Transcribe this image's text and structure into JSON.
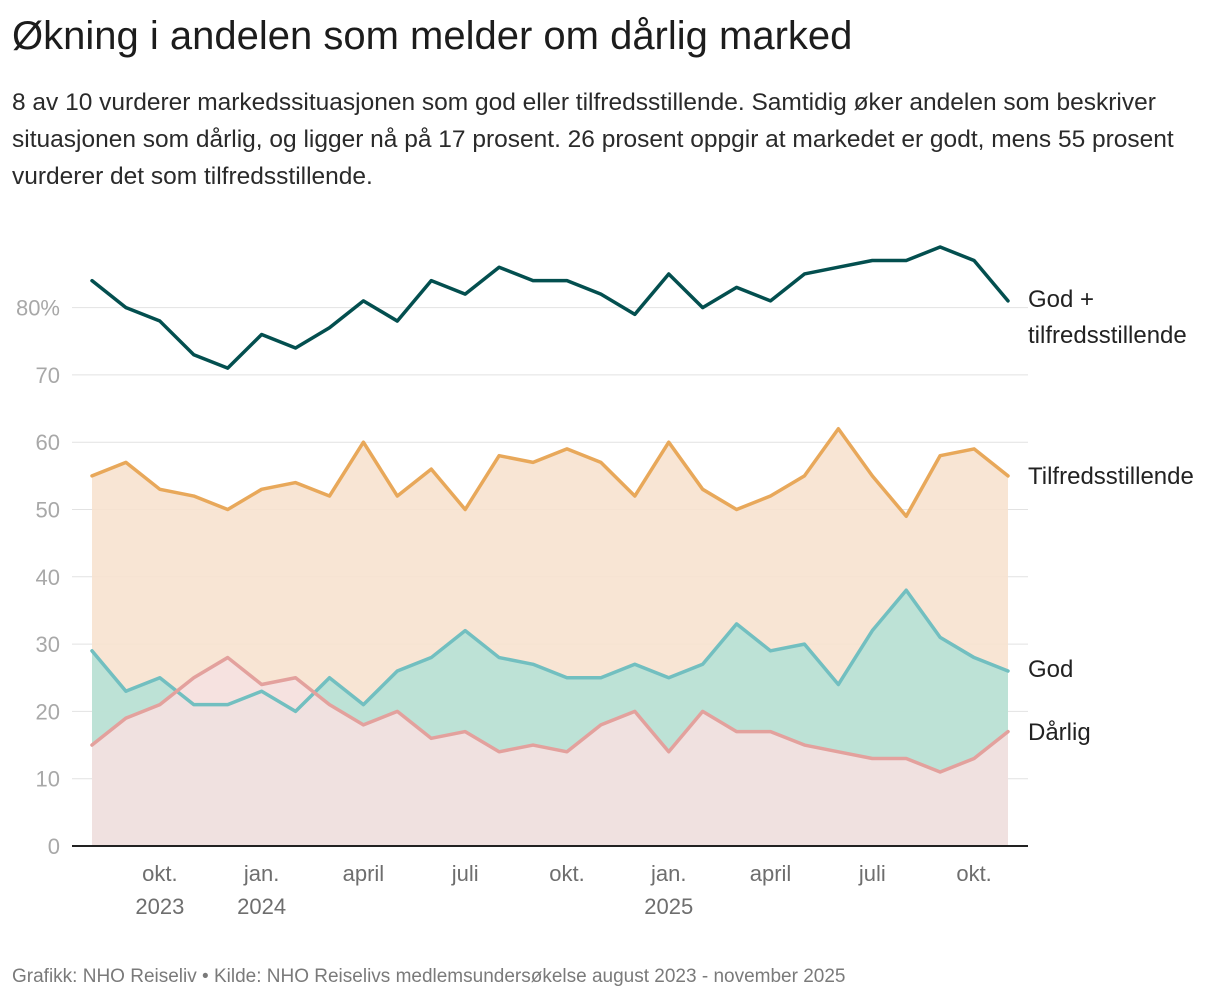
{
  "title": "Økning i andelen som melder om dårlig marked",
  "subtitle": "8 av 10 vurderer markedssituasjonen som god eller tilfredsstillende. Samtidig øker andelen som beskriver situasjonen som dårlig, og ligger nå på 17 prosent. 26 prosent oppgir at markedet er godt, mens 55 prosent vurderer det som tilfredsstillende.",
  "footer": "Grafikk: NHO Reiseliv • Kilde: NHO Reiselivs medlemsundersøkelse august 2023 - november 2025",
  "chart_data": {
    "type": "line",
    "x": [
      "2023-08",
      "2023-09",
      "2023-10",
      "2023-11",
      "2023-12",
      "2024-01",
      "2024-02",
      "2024-03",
      "2024-04",
      "2024-05",
      "2024-06",
      "2024-07",
      "2024-08",
      "2024-09",
      "2024-10",
      "2024-11",
      "2024-12",
      "2025-01",
      "2025-02",
      "2025-03",
      "2025-04",
      "2025-05",
      "2025-06",
      "2025-07",
      "2025-08",
      "2025-09",
      "2025-10",
      "2025-11"
    ],
    "ylim": [
      0,
      90
    ],
    "y_ticks": [
      {
        "value": 0,
        "label": "0"
      },
      {
        "value": 10,
        "label": "10"
      },
      {
        "value": 20,
        "label": "20"
      },
      {
        "value": 30,
        "label": "30"
      },
      {
        "value": 40,
        "label": "40"
      },
      {
        "value": 50,
        "label": "50"
      },
      {
        "value": 60,
        "label": "60"
      },
      {
        "value": 70,
        "label": "70"
      },
      {
        "value": 80,
        "label": "80%"
      }
    ],
    "x_ticks": [
      {
        "date": "2023-10",
        "label": "okt.",
        "year": "2023"
      },
      {
        "date": "2024-01",
        "label": "jan.",
        "year": "2024"
      },
      {
        "date": "2024-04",
        "label": "april",
        "year": ""
      },
      {
        "date": "2024-07",
        "label": "juli",
        "year": ""
      },
      {
        "date": "2024-10",
        "label": "okt.",
        "year": ""
      },
      {
        "date": "2025-01",
        "label": "jan.",
        "year": "2025"
      },
      {
        "date": "2025-04",
        "label": "april",
        "year": ""
      },
      {
        "date": "2025-07",
        "label": "juli",
        "year": ""
      },
      {
        "date": "2025-10",
        "label": "okt.",
        "year": ""
      }
    ],
    "grid": true,
    "legend": "direct labels at right end of lines",
    "series": [
      {
        "name": "Tilfredsstillende",
        "style": "area",
        "color": "#e8a85a",
        "fill": "#f7e2cf",
        "values": [
          55,
          57,
          53,
          52,
          50,
          53,
          54,
          52,
          60,
          52,
          56,
          50,
          58,
          57,
          59,
          57,
          52,
          60,
          53,
          50,
          52,
          55,
          62,
          55,
          49,
          58,
          59,
          55
        ]
      },
      {
        "name": "God",
        "style": "area",
        "color": "#72bfc0",
        "fill": "#b3e2d6",
        "values": [
          29,
          23,
          25,
          21,
          21,
          23,
          20,
          25,
          21,
          26,
          28,
          32,
          28,
          27,
          25,
          25,
          27,
          25,
          27,
          33,
          29,
          30,
          24,
          32,
          38,
          31,
          28,
          26
        ]
      },
      {
        "name": "Dårlig",
        "style": "area",
        "color": "#e3a19d",
        "fill": "#f5e1e1",
        "values": [
          15,
          19,
          21,
          25,
          28,
          24,
          25,
          21,
          18,
          20,
          16,
          17,
          14,
          15,
          14,
          18,
          20,
          14,
          20,
          17,
          17,
          15,
          14,
          13,
          13,
          11,
          13,
          17
        ]
      },
      {
        "name": "God + tilfredsstillende",
        "style": "line",
        "color": "#034f4f",
        "values": [
          84,
          80,
          78,
          73,
          71,
          76,
          74,
          77,
          81,
          78,
          84,
          82,
          86,
          84,
          84,
          82,
          79,
          85,
          80,
          83,
          81,
          85,
          86,
          87,
          87,
          89,
          87,
          81
        ]
      }
    ],
    "series_labels": {
      "total": [
        "God +",
        "tilfredsstillende"
      ],
      "tilfreds": "Tilfredsstillende",
      "god": "God",
      "darlig": "Dårlig"
    }
  }
}
